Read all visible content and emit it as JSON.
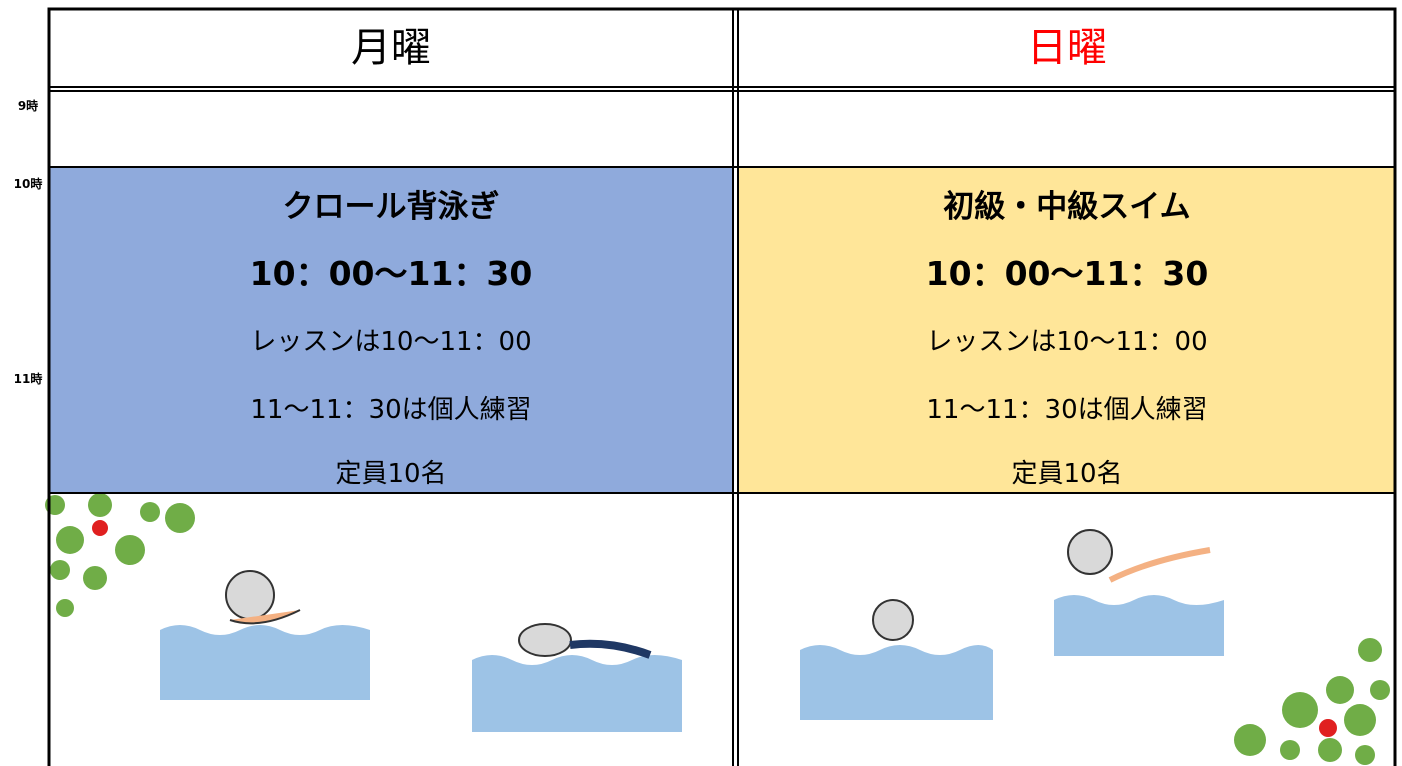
{
  "time_labels": [
    "9時",
    "10時",
    "11時"
  ],
  "table": {
    "headers": [
      "月曜",
      "日曜"
    ],
    "lessons": [
      {
        "title": "クロール背泳ぎ",
        "time": "10：00～11：30",
        "lines": [
          "レッスンは10～11：00",
          "11～11：30は個人練習",
          "定員10名"
        ]
      },
      {
        "title": "初級・中級スイム",
        "time": "10：00～11：30",
        "lines": [
          "レッスンは10～11：00",
          "11～11：30は個人練習",
          "定員10名"
        ]
      }
    ]
  }
}
